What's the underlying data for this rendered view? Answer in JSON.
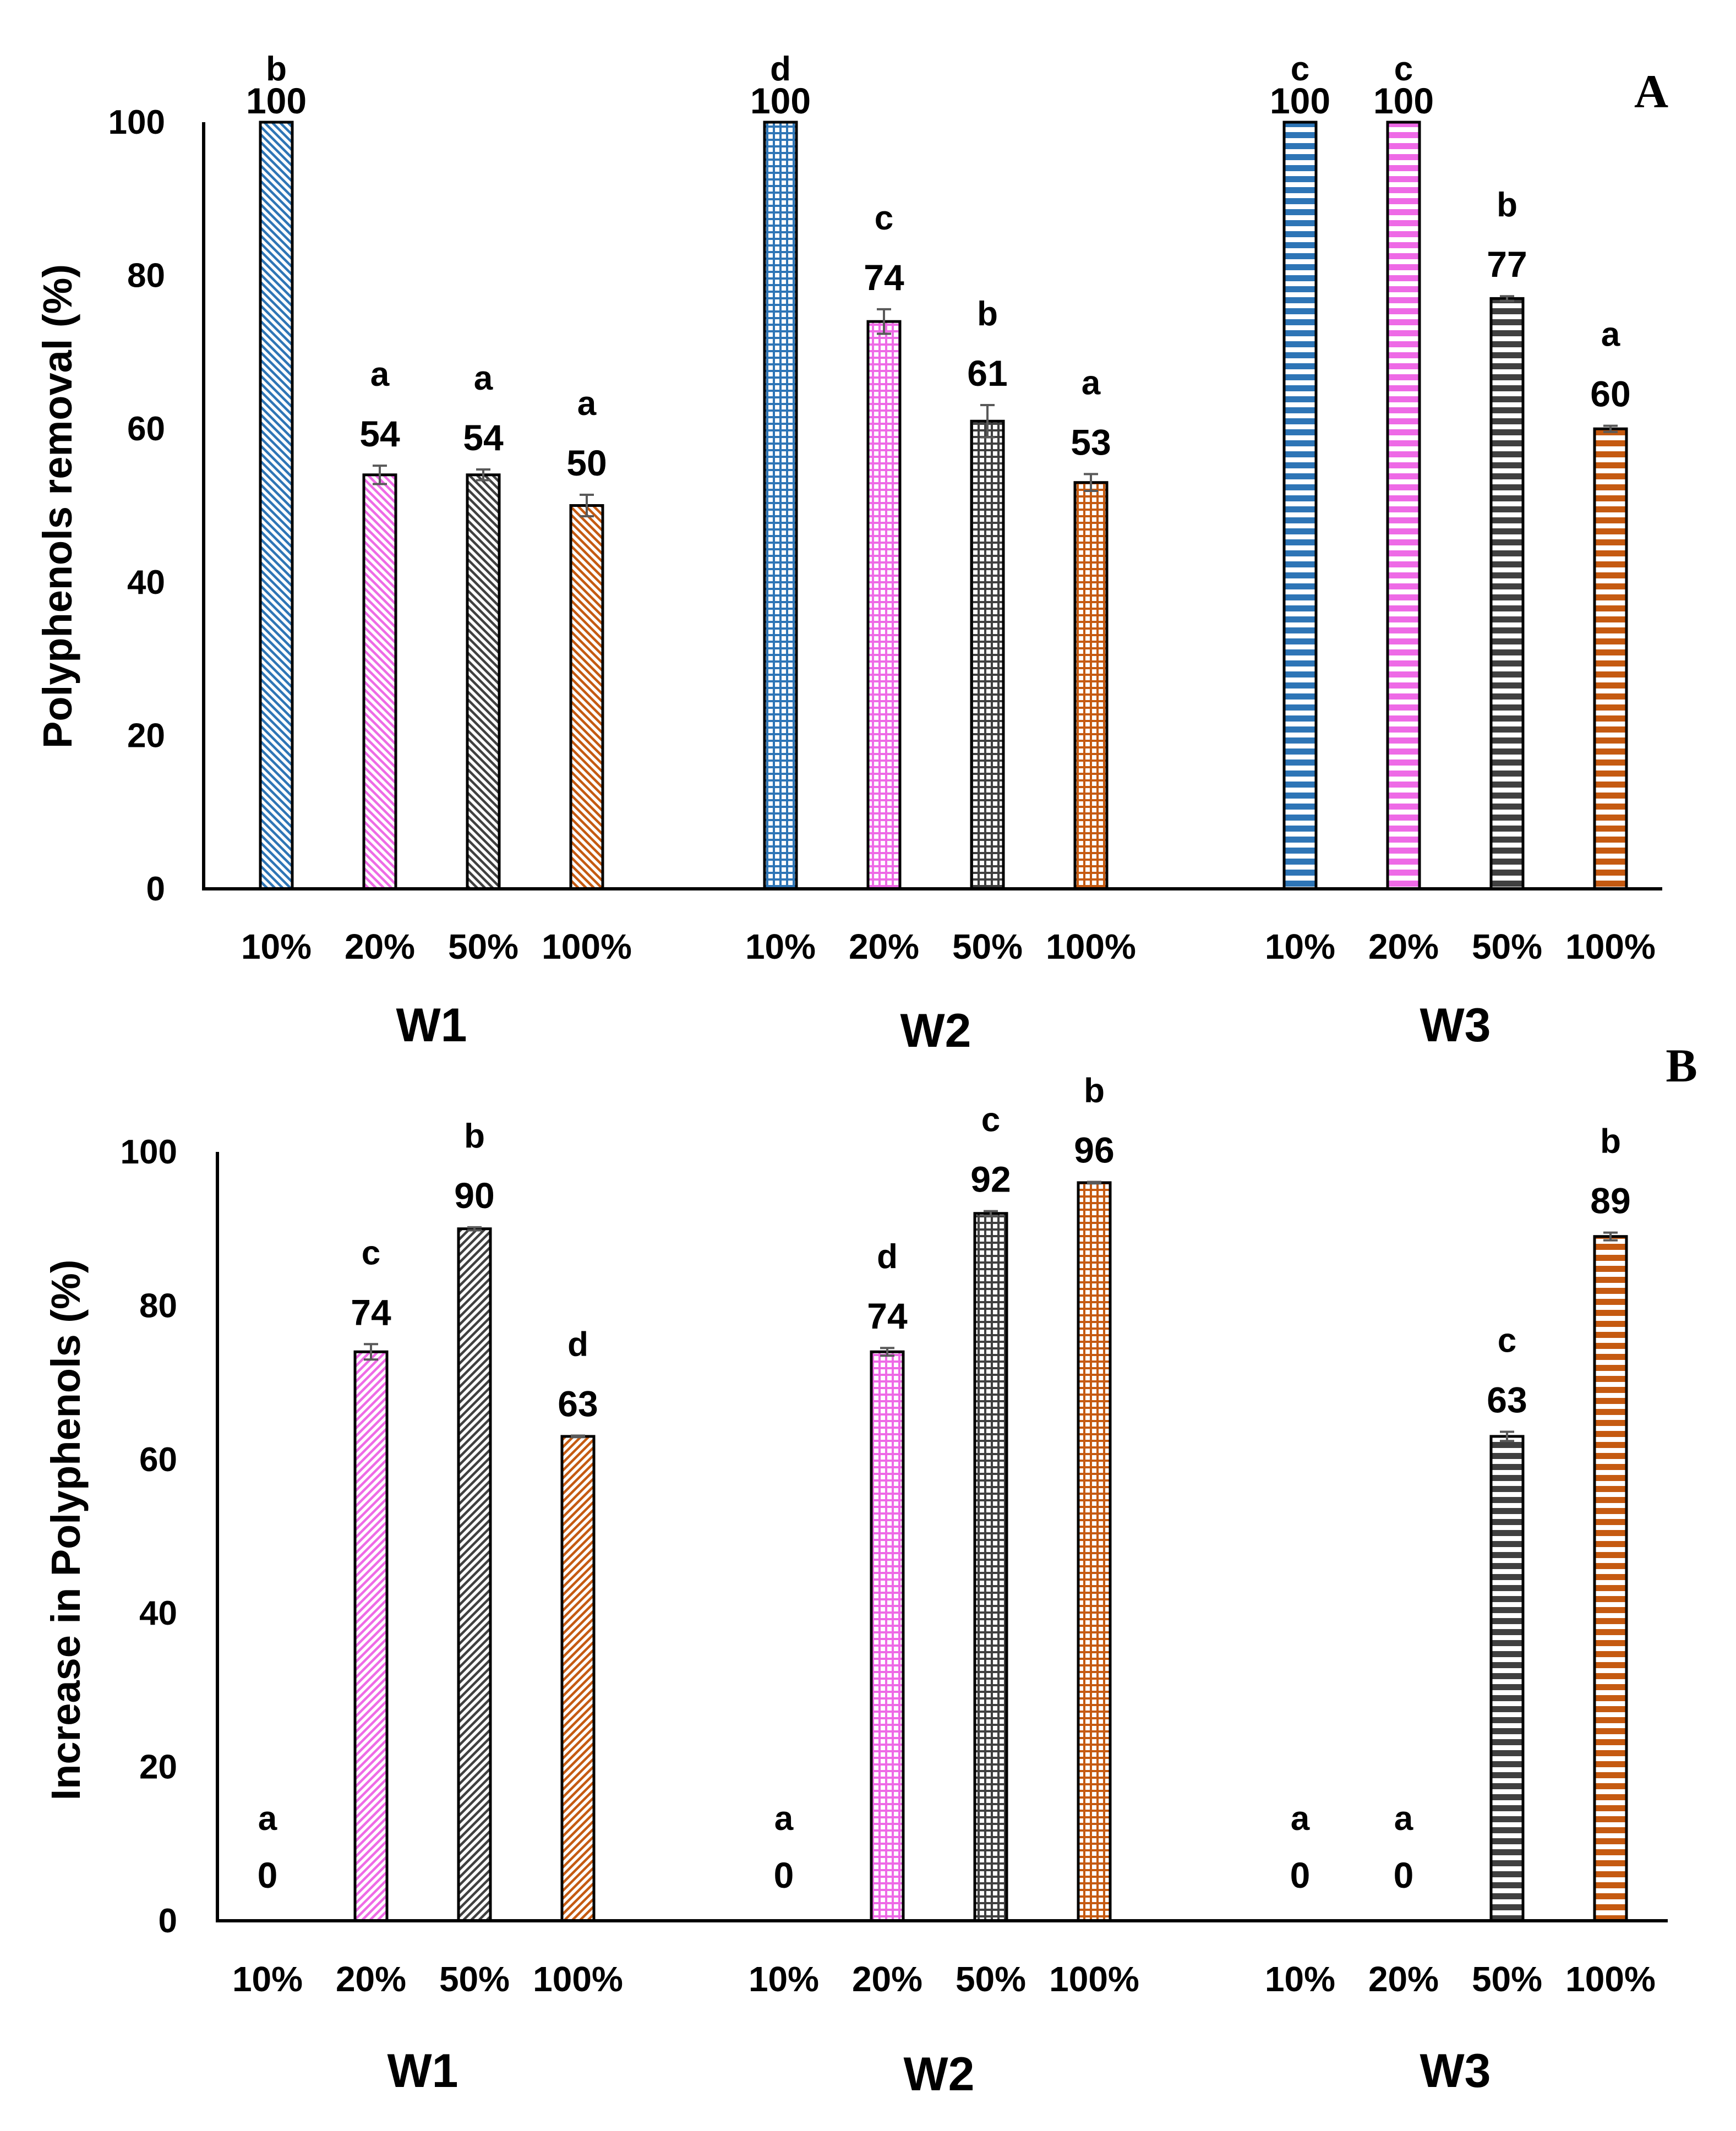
{
  "categories": [
    "10%",
    "20%",
    "50%",
    "100%"
  ],
  "colors": {
    "10%": "#2e75b6",
    "20%": "#ee6ae6",
    "50%": "#404040",
    "100%": "#c55a11"
  },
  "chart_data": [
    {
      "type": "bar",
      "panel": "A",
      "ylabel": "Polyphenols removal (%)",
      "ylim": [
        0,
        100
      ],
      "yticks": [
        0,
        20,
        40,
        60,
        80,
        100
      ],
      "groups": [
        {
          "name": "W1",
          "pattern": "diag-down",
          "bars": [
            {
              "category": "10%",
              "value": 100,
              "error": 0,
              "value_label": "100",
              "letter": "b"
            },
            {
              "category": "20%",
              "value": 54,
              "error": 1.2,
              "value_label": "54",
              "letter": "a"
            },
            {
              "category": "50%",
              "value": 54,
              "error": 0.7,
              "value_label": "54",
              "letter": "a"
            },
            {
              "category": "100%",
              "value": 50,
              "error": 1.4,
              "value_label": "50",
              "letter": "a"
            }
          ]
        },
        {
          "name": "W2",
          "pattern": "grid",
          "bars": [
            {
              "category": "10%",
              "value": 100,
              "error": 0,
              "value_label": "100",
              "letter": "d"
            },
            {
              "category": "20%",
              "value": 74,
              "error": 1.6,
              "value_label": "74",
              "letter": "c"
            },
            {
              "category": "50%",
              "value": 61,
              "error": 2.1,
              "value_label": "61",
              "letter": "b"
            },
            {
              "category": "100%",
              "value": 53,
              "error": 1.1,
              "value_label": "53",
              "letter": "a"
            }
          ]
        },
        {
          "name": "W3",
          "pattern": "horizontal",
          "bars": [
            {
              "category": "10%",
              "value": 100,
              "error": 0,
              "value_label": "100",
              "letter": "c"
            },
            {
              "category": "20%",
              "value": 100,
              "error": 0,
              "value_label": "100",
              "letter": "c"
            },
            {
              "category": "50%",
              "value": 77,
              "error": 0.3,
              "value_label": "77",
              "letter": "b"
            },
            {
              "category": "100%",
              "value": 60,
              "error": 0.4,
              "value_label": "60",
              "letter": "a"
            }
          ]
        }
      ]
    },
    {
      "type": "bar",
      "panel": "B",
      "ylabel": "Increase in Polyphenols (%)",
      "ylim": [
        0,
        100
      ],
      "yticks": [
        0,
        20,
        40,
        60,
        80,
        100
      ],
      "groups": [
        {
          "name": "W1",
          "pattern": "diag-up",
          "bars": [
            {
              "category": "10%",
              "value": 0,
              "error": 0,
              "value_label": "0",
              "letter": "a"
            },
            {
              "category": "20%",
              "value": 74,
              "error": 1.0,
              "value_label": "74",
              "letter": "c"
            },
            {
              "category": "50%",
              "value": 90,
              "error": 0.2,
              "value_label": "90",
              "letter": "b"
            },
            {
              "category": "100%",
              "value": 63,
              "error": 0.1,
              "value_label": "63",
              "letter": "d"
            }
          ]
        },
        {
          "name": "W2",
          "pattern": "grid",
          "bars": [
            {
              "category": "10%",
              "value": 0,
              "error": 0,
              "value_label": "0",
              "letter": "a"
            },
            {
              "category": "20%",
              "value": 74,
              "error": 0.5,
              "value_label": "74",
              "letter": "d"
            },
            {
              "category": "50%",
              "value": 92,
              "error": 0.3,
              "value_label": "92",
              "letter": "c"
            },
            {
              "category": "100%",
              "value": 96,
              "error": 0.1,
              "value_label": "96",
              "letter": "b"
            }
          ]
        },
        {
          "name": "W3",
          "pattern": "horizontal",
          "bars": [
            {
              "category": "10%",
              "value": 0,
              "error": 0,
              "value_label": "0",
              "letter": "a"
            },
            {
              "category": "20%",
              "value": 0,
              "error": 0,
              "value_label": "0",
              "letter": "a"
            },
            {
              "category": "50%",
              "value": 63,
              "error": 0.6,
              "value_label": "63",
              "letter": "c"
            },
            {
              "category": "100%",
              "value": 89,
              "error": 0.5,
              "value_label": "89",
              "letter": "b"
            }
          ]
        }
      ]
    }
  ]
}
